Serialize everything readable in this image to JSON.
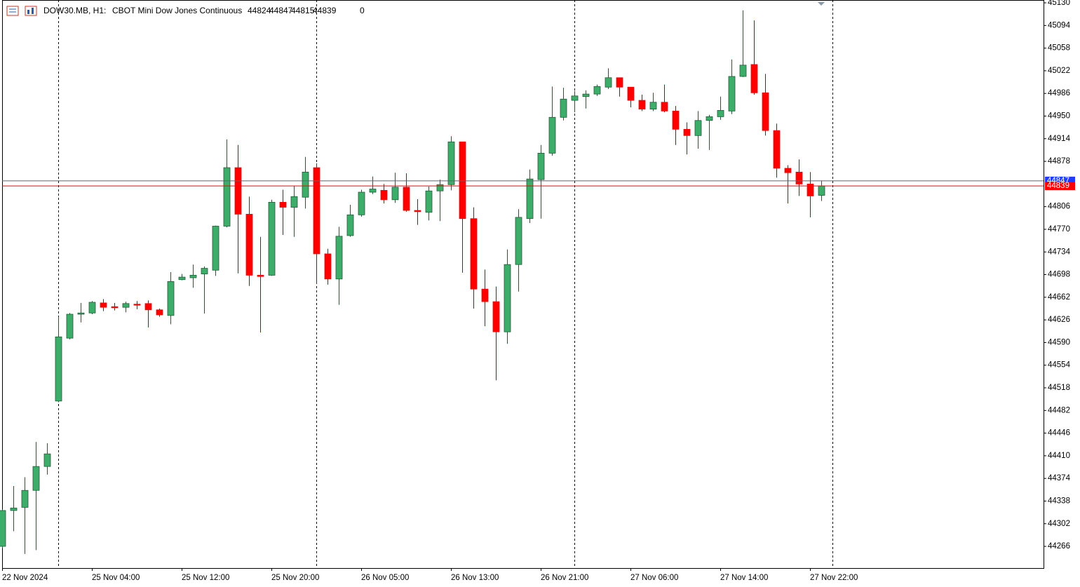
{
  "chart_data": {
    "type": "candlestick",
    "symbol": "DOW30.MB, H1:",
    "description": "CBOT Mini Dow Jones Continuous",
    "header_volume": 0,
    "categories": [
      "22 Nov 2024",
      null,
      null,
      null,
      null,
      null,
      null,
      null,
      "25 Nov 04:00",
      null,
      null,
      null,
      null,
      null,
      null,
      null,
      "25 Nov 12:00",
      null,
      null,
      null,
      null,
      null,
      null,
      null,
      "25 Nov 20:00",
      null,
      null,
      null,
      null,
      null,
      null,
      null,
      "26 Nov 05:00",
      null,
      null,
      null,
      null,
      null,
      null,
      null,
      "26 Nov 13:00",
      null,
      null,
      null,
      null,
      null,
      null,
      null,
      "26 Nov 21:00",
      null,
      null,
      null,
      null,
      null,
      null,
      null,
      "27 Nov 06:00",
      null,
      null,
      null,
      null,
      null,
      null,
      null,
      "27 Nov 14:00",
      null,
      null,
      null,
      null,
      null,
      null,
      null,
      "27 Nov 22:00",
      null
    ],
    "open": [
      44266,
      44323,
      44328,
      44355,
      44393,
      44497,
      44597,
      44635,
      44637,
      44653,
      44647,
      44646,
      44651,
      44652,
      44642,
      44633,
      44690,
      44693,
      44699,
      44705,
      44775,
      44868,
      44794,
      44697,
      44697,
      44813,
      44805,
      44821,
      44868,
      44731,
      44691,
      44760,
      44793,
      44829,
      44832,
      44817,
      44837,
      44800,
      44797,
      44831,
      44841,
      44909,
      44787,
      44675,
      44655,
      44607,
      44714,
      44787,
      44849,
      44891,
      44948,
      44975,
      44981,
      44985,
      44996,
      45011,
      44996,
      44975,
      44961,
      44972,
      44958,
      44929,
      44919,
      44943,
      44949,
      44958,
      45013,
      45032,
      44987,
      44927,
      44867,
      44861,
      44842,
      44824
    ],
    "high": [
      44325,
      44362,
      44376,
      44432,
      44430,
      44631,
      44637,
      44653,
      44656,
      44659,
      44653,
      44655,
      44656,
      44657,
      44644,
      44702,
      44699,
      44714,
      44711,
      44776,
      44913,
      44904,
      44822,
      44758,
      44817,
      44833,
      44839,
      44885,
      44875,
      44739,
      44774,
      44809,
      44833,
      44854,
      44842,
      44860,
      44859,
      44818,
      44838,
      44849,
      44918,
      44909,
      44805,
      44706,
      44679,
      44738,
      44802,
      44865,
      44904,
      44997,
      44995,
      44990,
      44991,
      45000,
      45026,
      45011,
      44996,
      44984,
      44987,
      45000,
      44966,
      44940,
      44958,
      44952,
      44981,
      45040,
      45118,
      45102,
      45017,
      44938,
      44872,
      44881,
      44861,
      44847
    ],
    "low": [
      44263,
      44290,
      44254,
      44260,
      44380,
      44495,
      44595,
      44622,
      44635,
      44640,
      44641,
      44638,
      44643,
      44614,
      44631,
      44619,
      44689,
      44677,
      44636,
      44696,
      44773,
      44700,
      44680,
      44606,
      44696,
      44761,
      44758,
      44803,
      44683,
      44682,
      44650,
      44758,
      44790,
      44826,
      44811,
      44812,
      44798,
      44777,
      44784,
      44783,
      44832,
      44701,
      44644,
      44616,
      44530,
      44588,
      44671,
      44780,
      44787,
      44887,
      44943,
      44956,
      44962,
      44982,
      44993,
      44981,
      44964,
      44958,
      44958,
      44956,
      44904,
      44889,
      44898,
      44896,
      44944,
      44953,
      45012,
      44984,
      44919,
      44852,
      44811,
      44823,
      44789,
      44815
    ],
    "close": [
      44323,
      44327,
      44355,
      44393,
      44413,
      44599,
      44635,
      44637,
      44654,
      44646,
      44646,
      44652,
      44650,
      44642,
      44634,
      44687,
      44694,
      44697,
      44708,
      44775,
      44868,
      44794,
      44697,
      44695,
      44813,
      44805,
      44822,
      44861,
      44731,
      44691,
      44759,
      44793,
      44829,
      44834,
      44817,
      44837,
      44800,
      44798,
      44831,
      44841,
      44909,
      44787,
      44675,
      44655,
      44607,
      44714,
      44789,
      44850,
      44891,
      44948,
      44977,
      44982,
      44985,
      44997,
      45011,
      44996,
      44975,
      44961,
      44972,
      44958,
      44929,
      44919,
      44943,
      44949,
      44959,
      45013,
      45031,
      44987,
      44927,
      44867,
      44860,
      44842,
      44823,
      44839
    ],
    "up_color": "#3cae6a",
    "down_color": "#ff0000",
    "ask": 44847,
    "ask_color": "#1f3cff",
    "bid": 44839,
    "bid_color": "#ff0000",
    "ylim": [
      44231.5,
      45134.5
    ],
    "yticks": [
      45130,
      45094,
      45058,
      45022,
      44986,
      44950,
      44914,
      44878,
      44806,
      44770,
      44734,
      44698,
      44662,
      44626,
      44590,
      44554,
      44518,
      44482,
      44446,
      44410,
      44374,
      44338,
      44302,
      44266
    ]
  }
}
